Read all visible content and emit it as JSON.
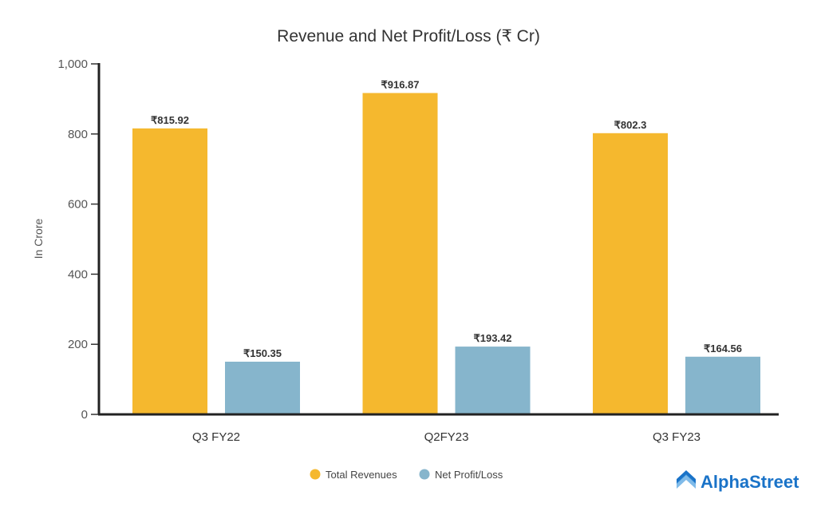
{
  "chart_data": {
    "type": "bar",
    "title": "Revenue and Net Profit/Loss (₹ Cr)",
    "xlabel": "",
    "ylabel": "In Crore",
    "ylim": [
      0,
      1000
    ],
    "yticks": [
      0,
      200,
      400,
      600,
      800,
      1000
    ],
    "ytick_labels": [
      "0",
      "200",
      "400",
      "600",
      "800",
      "1,000"
    ],
    "categories": [
      "Q3 FY22",
      "Q2FY23",
      "Q3 FY23"
    ],
    "series": [
      {
        "name": "Total Revenues",
        "color": "#f5b82e",
        "values": [
          815.92,
          916.87,
          802.3
        ],
        "labels": [
          "₹815.92",
          "₹916.87",
          "₹802.3"
        ]
      },
      {
        "name": "Net Profit/Loss",
        "color": "#86b5cc",
        "values": [
          150.35,
          193.42,
          164.56
        ],
        "labels": [
          "₹150.35",
          "₹193.42",
          "₹164.56"
        ]
      }
    ],
    "grid": false,
    "legend_position": "bottom-center"
  },
  "brand": {
    "name": "AlphaStreet",
    "color": "#1a73c8"
  }
}
